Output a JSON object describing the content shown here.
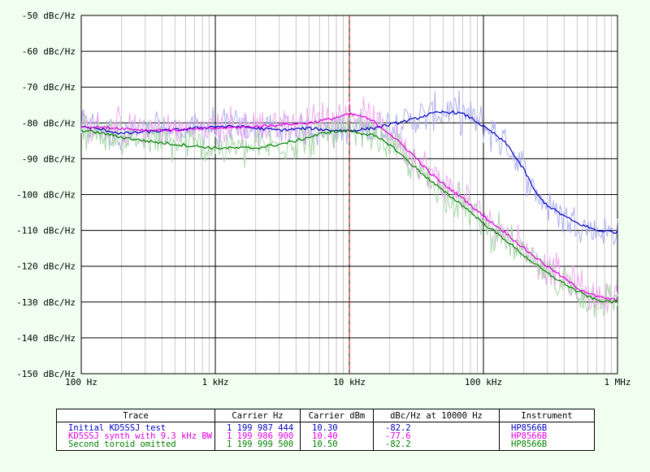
{
  "chart_data": {
    "type": "line",
    "x_scale": "log",
    "xlim": [
      100,
      1000000
    ],
    "ylim": [
      -150,
      -50
    ],
    "grid": true,
    "y_ticks": [
      "-50 dBc/Hz",
      "-60 dBc/Hz",
      "-70 dBc/Hz",
      "-80 dBc/Hz",
      "-90 dBc/Hz",
      "-100 dBc/Hz",
      "-110 dBc/Hz",
      "-120 dBc/Hz",
      "-130 dBc/Hz",
      "-140 dBc/Hz",
      "-150 dBc/Hz"
    ],
    "x_ticks": [
      "100 Hz",
      "1 kHz",
      "10 kHz",
      "100 kHz",
      "1 MHz"
    ],
    "marker_x": 10000,
    "series": [
      {
        "name": "Initial KD5SSJ test",
        "color": "#0000C0",
        "x": [
          100,
          150,
          200,
          300,
          500,
          700,
          1000,
          1500,
          2000,
          3000,
          5000,
          7000,
          10000,
          15000,
          20000,
          30000,
          40000,
          50000,
          60000,
          70000,
          80000,
          100000,
          120000,
          150000,
          200000,
          250000,
          300000,
          400000,
          500000,
          700000,
          1000000
        ],
        "y": [
          -81,
          -82,
          -83,
          -82.5,
          -82,
          -81.5,
          -81,
          -81,
          -81.5,
          -82,
          -81.5,
          -82,
          -82.2,
          -81.5,
          -80.5,
          -79,
          -77.5,
          -77,
          -77,
          -77.5,
          -78.5,
          -81,
          -83,
          -86,
          -93,
          -100,
          -103,
          -106,
          -108,
          -110,
          -110.5
        ]
      },
      {
        "name": "KD5SSJ synth with 9.3 kHz BW",
        "color": "#E000E0",
        "x": [
          100,
          200,
          300,
          500,
          1000,
          2000,
          3000,
          5000,
          7000,
          10000,
          12000,
          15000,
          20000,
          30000,
          40000,
          50000,
          70000,
          100000,
          150000,
          200000,
          300000,
          500000,
          700000,
          1000000
        ],
        "y": [
          -81,
          -81.5,
          -82,
          -82,
          -81.5,
          -81,
          -80.5,
          -80,
          -79,
          -77.6,
          -78,
          -79.5,
          -83,
          -89,
          -94,
          -97,
          -101,
          -106,
          -111,
          -115,
          -120,
          -126,
          -128.5,
          -129.5
        ]
      },
      {
        "name": "Second toroid omitted",
        "color": "#008000",
        "x": [
          100,
          150,
          200,
          300,
          500,
          700,
          1000,
          1500,
          2000,
          3000,
          4000,
          5000,
          7000,
          10000,
          15000,
          20000,
          30000,
          40000,
          50000,
          70000,
          100000,
          150000,
          200000,
          300000,
          500000,
          700000,
          1000000
        ],
        "y": [
          -82,
          -83,
          -84,
          -85,
          -86,
          -86.5,
          -87,
          -87,
          -87,
          -86,
          -85,
          -84,
          -82.5,
          -82.2,
          -83.5,
          -86,
          -92,
          -96,
          -99,
          -103,
          -108,
          -113,
          -117,
          -122,
          -127,
          -129.5,
          -130
        ]
      }
    ]
  },
  "table": {
    "headers": [
      "Trace",
      "Carrier Hz",
      "Carrier dBm",
      "dBc/Hz at 10000 Hz",
      "Instrument"
    ],
    "rows": [
      {
        "color": "#0000C0",
        "cells": [
          "Initial KD5SSJ test",
          "1 199 987 444",
          "10.30",
          "-82.2",
          "HP8566B"
        ]
      },
      {
        "color": "#E000E0",
        "cells": [
          "KD5SSJ synth with 9.3 kHz BW",
          "1 199 986 900",
          "10.40",
          "-77.6",
          "HP8566B"
        ]
      },
      {
        "color": "#008000",
        "cells": [
          "Second toroid omitted",
          "1 199 999 500",
          "10.50",
          "-82.2",
          "HP8566B"
        ]
      }
    ]
  }
}
